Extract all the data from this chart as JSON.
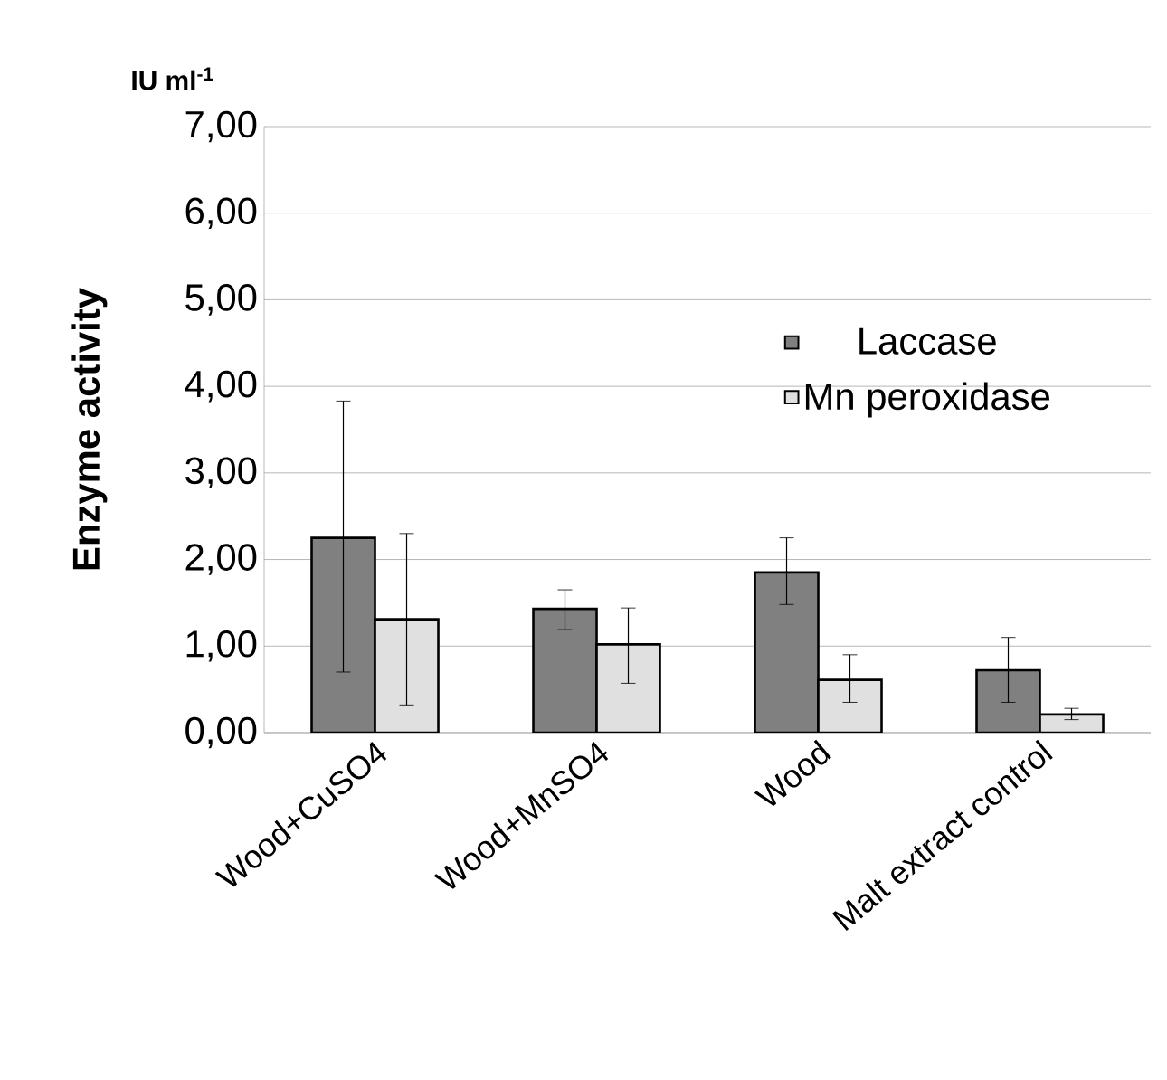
{
  "chart_data": {
    "type": "bar",
    "ylabel": "Enzyme activity",
    "annotations": [
      "IU ml$^{-1}$"
    ],
    "categories": [
      "Wood+CuSO4",
      "Wood+MnSO4",
      "Wood",
      "Malt extract control"
    ],
    "series": [
      {
        "name": "Laccase",
        "color": "#808080",
        "values": [
          2.25,
          1.43,
          1.85,
          0.72
        ],
        "errors": [
          [
            0.7,
            3.83
          ],
          [
            1.19,
            1.65
          ],
          [
            1.48,
            2.25
          ],
          [
            0.35,
            1.1
          ]
        ]
      },
      {
        "name": "Mn peroxidase",
        "color": "#e0e0e0",
        "values": [
          1.31,
          1.02,
          0.61,
          0.21
        ],
        "errors": [
          [
            0.32,
            2.3
          ],
          [
            0.57,
            1.44
          ],
          [
            0.35,
            0.9
          ],
          [
            0.15,
            0.28
          ]
        ]
      }
    ],
    "ylim": [
      0,
      7
    ],
    "yticks": [
      {
        "value": 0,
        "label": "0,00"
      },
      {
        "value": 1,
        "label": "1,00"
      },
      {
        "value": 2,
        "label": "2,00"
      },
      {
        "value": 3,
        "label": "3,00"
      },
      {
        "value": 4,
        "label": "4,00"
      },
      {
        "value": 5,
        "label": "5,00"
      },
      {
        "value": 6,
        "label": "6,00"
      },
      {
        "value": 7,
        "label": "7,00"
      }
    ],
    "grid": "y",
    "legend": "right"
  }
}
